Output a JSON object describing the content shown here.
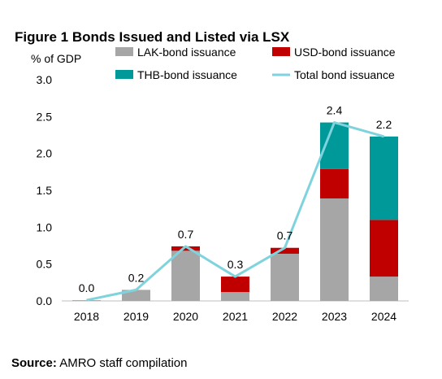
{
  "title": "Figure 1 Bonds Issued and Listed via LSX",
  "source_label": "Source:",
  "source_text": "AMRO staff compilation",
  "chart_data": {
    "type": "bar",
    "stacked": true,
    "ylabel": "% of GDP",
    "ylim": [
      0,
      3.0
    ],
    "yticks": [
      "0.0",
      "0.5",
      "1.0",
      "1.5",
      "2.0",
      "2.5",
      "3.0"
    ],
    "categories": [
      "2018",
      "2019",
      "2020",
      "2021",
      "2022",
      "2023",
      "2024"
    ],
    "series": [
      {
        "name": "LAK-bond issuance",
        "type": "bar",
        "color": "#a6a6a6",
        "values": [
          0.01,
          0.15,
          0.68,
          0.12,
          0.64,
          1.39,
          0.33
        ]
      },
      {
        "name": "USD-bond issuance",
        "type": "bar",
        "color": "#c00000",
        "values": [
          0.0,
          0.0,
          0.06,
          0.21,
          0.08,
          0.4,
          0.77
        ]
      },
      {
        "name": "THB-bond issuance",
        "type": "bar",
        "color": "#009999",
        "values": [
          0.0,
          0.0,
          0.0,
          0.0,
          0.0,
          0.63,
          1.13
        ]
      },
      {
        "name": "Total bond issuance",
        "type": "line",
        "color": "#7fd3dd",
        "values": [
          0.01,
          0.15,
          0.74,
          0.33,
          0.72,
          2.42,
          2.23
        ]
      }
    ],
    "data_labels": [
      "0.0",
      "0.2",
      "0.7",
      "0.3",
      "0.7",
      "2.4",
      "2.2"
    ],
    "legend": "top",
    "grid": false
  }
}
